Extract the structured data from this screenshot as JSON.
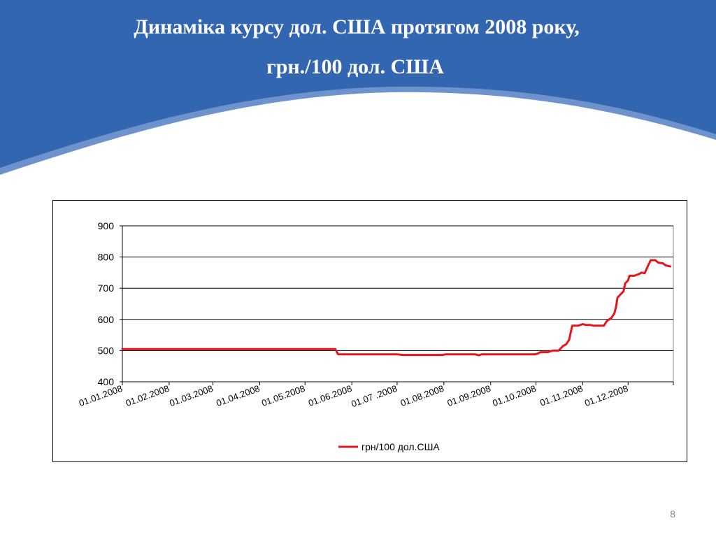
{
  "slide": {
    "title_line1": "Динаміка курсу дол. США протягом 2008 року,",
    "title_line2": "грн./100 дол. США",
    "page_number": "8"
  },
  "colors": {
    "header_blue": "#3366B0",
    "header_light": "#6E93CC",
    "series_line": "#E8141C",
    "grid": "#000000"
  },
  "chart_data": {
    "type": "line",
    "title": "",
    "xlabel": "",
    "ylabel": "",
    "ylim": [
      400,
      900
    ],
    "yticks": [
      400,
      500,
      600,
      700,
      800,
      900
    ],
    "xlim": [
      "2008-01-01",
      "2008-12-31"
    ],
    "xticks": [
      {
        "date": "2008-01-01",
        "label": "01.01.2008"
      },
      {
        "date": "2008-02-01",
        "label": "01.02.2008"
      },
      {
        "date": "2008-03-01",
        "label": "01.03.2008"
      },
      {
        "date": "2008-04-01",
        "label": "01.04.2008"
      },
      {
        "date": "2008-05-01",
        "label": "01.05.2008"
      },
      {
        "date": "2008-06-01",
        "label": "01.06.2008"
      },
      {
        "date": "2008-07-01",
        "label": "01.07 .2008"
      },
      {
        "date": "2008-08-01",
        "label": "01.08.2008"
      },
      {
        "date": "2008-09-01",
        "label": "01.09.2008"
      },
      {
        "date": "2008-10-01",
        "label": "01.10.2008"
      },
      {
        "date": "2008-11-01",
        "label": "01.11.2008"
      },
      {
        "date": "2008-12-01",
        "label": "01.12.2008"
      }
    ],
    "grid": "horizontal",
    "legend_position": "bottom",
    "series": [
      {
        "name": "грн/100 дол.США",
        "color": "#E8141C",
        "points": [
          [
            "2008-01-01",
            505
          ],
          [
            "2008-05-21",
            505
          ],
          [
            "2008-05-23",
            488
          ],
          [
            "2008-07-01",
            488
          ],
          [
            "2008-07-05",
            486
          ],
          [
            "2008-07-31",
            486
          ],
          [
            "2008-08-02",
            488
          ],
          [
            "2008-08-22",
            488
          ],
          [
            "2008-08-24",
            485
          ],
          [
            "2008-08-26",
            488
          ],
          [
            "2008-09-30",
            488
          ],
          [
            "2008-10-02",
            490
          ],
          [
            "2008-10-04",
            495
          ],
          [
            "2008-10-09",
            495
          ],
          [
            "2008-10-12",
            500
          ],
          [
            "2008-10-16",
            500
          ],
          [
            "2008-10-19",
            515
          ],
          [
            "2008-10-21",
            520
          ],
          [
            "2008-10-23",
            535
          ],
          [
            "2008-10-25",
            580
          ],
          [
            "2008-10-29",
            580
          ],
          [
            "2008-11-01",
            585
          ],
          [
            "2008-11-03",
            582
          ],
          [
            "2008-11-06",
            582
          ],
          [
            "2008-11-08",
            580
          ],
          [
            "2008-11-15",
            580
          ],
          [
            "2008-11-17",
            595
          ],
          [
            "2008-11-20",
            605
          ],
          [
            "2008-11-22",
            620
          ],
          [
            "2008-11-23",
            640
          ],
          [
            "2008-11-24",
            670
          ],
          [
            "2008-11-26",
            680
          ],
          [
            "2008-11-28",
            690
          ],
          [
            "2008-11-29",
            715
          ],
          [
            "2008-12-01",
            725
          ],
          [
            "2008-12-02",
            740
          ],
          [
            "2008-12-05",
            740
          ],
          [
            "2008-12-08",
            745
          ],
          [
            "2008-12-10",
            750
          ],
          [
            "2008-12-12",
            748
          ],
          [
            "2008-12-14",
            770
          ],
          [
            "2008-12-16",
            790
          ],
          [
            "2008-12-19",
            790
          ],
          [
            "2008-12-21",
            782
          ],
          [
            "2008-12-24",
            780
          ],
          [
            "2008-12-26",
            773
          ],
          [
            "2008-12-29",
            770
          ]
        ]
      }
    ]
  }
}
